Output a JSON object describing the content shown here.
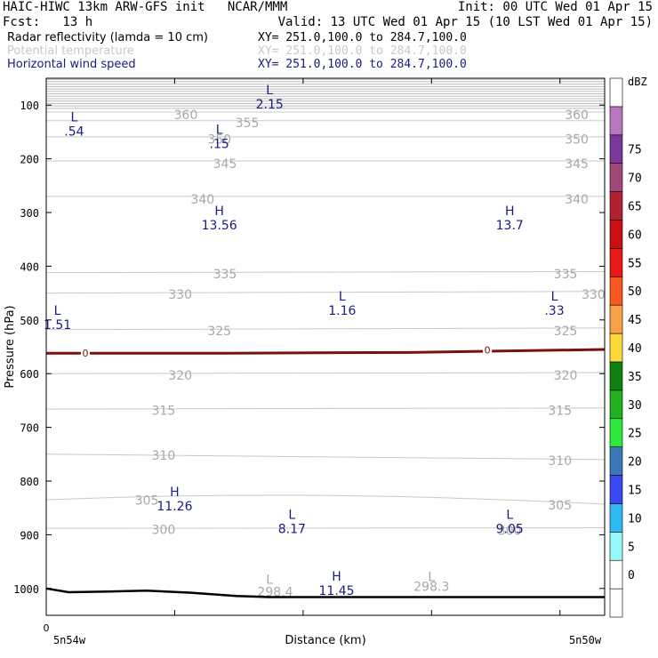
{
  "header": {
    "line1_left": "HAIC-HIWC 13km ARW-GFS init   NCAR/MMM",
    "line1_right": "Init: 00 UTC Wed 01 Apr 15",
    "line2_left": "Fcst:   13 h",
    "line2_right": "Valid: 13 UTC Wed 01 Apr 15 (10 LST Wed 01 Apr 15)",
    "fields": [
      {
        "name": "Radar reflectivity (lamda = 10 cm)",
        "xy": "XY= 251.0,100.0 to 284.7,100.0",
        "color": "#000000"
      },
      {
        "name": "Potential temperature",
        "xy": "XY= 251.0,100.0 to 284.7,100.0",
        "color": "#c8c8c8"
      },
      {
        "name": "Horizontal wind speed",
        "xy": "XY= 251.0,100.0 to 284.7,100.0",
        "color": "#1a1a80"
      }
    ]
  },
  "colors": {
    "theta": "#a8a8a8",
    "wind_label": "#1a1a80",
    "freezing": "#7a1010",
    "terrain": "#000000"
  },
  "chart_data": {
    "type": "cross-section",
    "ylabel": "Pressure (hPa)",
    "xlabel": "Distance (km)",
    "x_start_label": "5n54w",
    "x_end_label": "5n50w",
    "x_zero_label": "0",
    "y_range": [
      50,
      1050
    ],
    "y_ticks": [
      100,
      200,
      300,
      400,
      500,
      600,
      700,
      800,
      900,
      1000
    ],
    "theta_contours": [
      {
        "value": 360,
        "p_left": 113,
        "p_right": 113
      },
      {
        "value": 355,
        "p_left": 129,
        "p_right": 129
      },
      {
        "value": 350,
        "p_left": 159,
        "p_right": 159
      },
      {
        "value": 345,
        "p_left": 204,
        "p_right": 204
      },
      {
        "value": 340,
        "p_left": 270,
        "p_right": 270
      },
      {
        "value": 335,
        "p_left": 412,
        "p_right": 410
      },
      {
        "value": 330,
        "p_left": 450,
        "p_right": 447
      },
      {
        "value": 325,
        "p_left": 518,
        "p_right": 515
      },
      {
        "value": 320,
        "p_left": 600,
        "p_right": 598
      },
      {
        "value": 315,
        "p_left": 666,
        "p_right": 664
      },
      {
        "value": 310,
        "p_left": 750,
        "p_right": 760
      },
      {
        "value": 305,
        "p_left": 835,
        "p_right": 843
      },
      {
        "value": 300,
        "p_left": 888,
        "p_right": 887
      }
    ],
    "theta_labels": [
      {
        "text": "360",
        "x": 0.25,
        "p": 118
      },
      {
        "text": "360",
        "x": 0.95,
        "p": 118
      },
      {
        "text": "355",
        "x": 0.36,
        "p": 133
      },
      {
        "text": "350",
        "x": 0.31,
        "p": 163
      },
      {
        "text": "350",
        "x": 0.95,
        "p": 163
      },
      {
        "text": "345",
        "x": 0.32,
        "p": 209
      },
      {
        "text": "345",
        "x": 0.95,
        "p": 209
      },
      {
        "text": "340",
        "x": 0.28,
        "p": 275
      },
      {
        "text": "340",
        "x": 0.95,
        "p": 275
      },
      {
        "text": "335",
        "x": 0.32,
        "p": 414
      },
      {
        "text": "335",
        "x": 0.93,
        "p": 414
      },
      {
        "text": "330",
        "x": 0.24,
        "p": 452
      },
      {
        "text": "330",
        "x": 0.98,
        "p": 452
      },
      {
        "text": "325",
        "x": 0.31,
        "p": 520
      },
      {
        "text": "325",
        "x": 0.93,
        "p": 520
      },
      {
        "text": "320",
        "x": 0.24,
        "p": 603
      },
      {
        "text": "320",
        "x": 0.93,
        "p": 603
      },
      {
        "text": "315",
        "x": 0.21,
        "p": 668
      },
      {
        "text": "315",
        "x": 0.92,
        "p": 668
      },
      {
        "text": "310",
        "x": 0.21,
        "p": 752
      },
      {
        "text": "310",
        "x": 0.92,
        "p": 762
      },
      {
        "text": "305",
        "x": 0.18,
        "p": 836
      },
      {
        "text": "305",
        "x": 0.92,
        "p": 845
      },
      {
        "text": "300",
        "x": 0.21,
        "p": 890
      },
      {
        "text": "300",
        "x": 0.83,
        "p": 892
      },
      {
        "text": "298.4",
        "x": 0.41,
        "p": 1006
      },
      {
        "text": "298.3",
        "x": 0.69,
        "p": 996
      }
    ],
    "theta_minima": [
      {
        "text": "L",
        "x": 0.4,
        "p": 983
      },
      {
        "text": "L",
        "x": 0.69,
        "p": 978
      }
    ],
    "wind_extrema": [
      {
        "type": "L",
        "value": "2.15",
        "x": 0.4,
        "p": 90
      },
      {
        "type": "L",
        "value": ".54",
        "x": 0.05,
        "p": 140
      },
      {
        "type": "L",
        "value": ".15",
        "x": 0.31,
        "p": 163
      },
      {
        "type": "H",
        "value": "13.56",
        "x": 0.31,
        "p": 315
      },
      {
        "type": "H",
        "value": "13.7",
        "x": 0.83,
        "p": 315
      },
      {
        "type": "L",
        "value": "1.16",
        "x": 0.53,
        "p": 474
      },
      {
        "type": "L",
        "value": ".33",
        "x": 0.91,
        "p": 474
      },
      {
        "type": "L",
        "value": "1.51",
        "x": 0.02,
        "p": 500
      },
      {
        "type": "H",
        "value": "11.26",
        "x": 0.23,
        "p": 838
      },
      {
        "type": "L",
        "value": "8.17",
        "x": 0.44,
        "p": 880
      },
      {
        "type": "L",
        "value": "9.05",
        "x": 0.83,
        "p": 880
      },
      {
        "type": "H",
        "value": "11.45",
        "x": 0.52,
        "p": 995
      }
    ],
    "freezing_level": {
      "label": "0",
      "p_left": 562,
      "p_right": 555
    },
    "terrain_surface": [
      {
        "x": 0.0,
        "p": 1000
      },
      {
        "x": 0.04,
        "p": 1007
      },
      {
        "x": 0.1,
        "p": 1006
      },
      {
        "x": 0.18,
        "p": 1004
      },
      {
        "x": 0.26,
        "p": 1008
      },
      {
        "x": 0.34,
        "p": 1014
      },
      {
        "x": 0.4,
        "p": 1016
      },
      {
        "x": 0.7,
        "p": 1016
      },
      {
        "x": 1.0,
        "p": 1016
      }
    ],
    "colorbar": {
      "unit": "dBZ",
      "levels": [
        -5,
        0,
        5,
        10,
        15,
        20,
        25,
        30,
        35,
        40,
        45,
        50,
        55,
        60,
        65,
        70,
        75,
        80
      ],
      "labels": [
        "0",
        "5",
        "10",
        "15",
        "20",
        "25",
        "30",
        "35",
        "40",
        "45",
        "50",
        "55",
        "60",
        "65",
        "70",
        "75"
      ],
      "colors": [
        "#ffffff",
        "#ffffff",
        "#96f8f8",
        "#30b8f0",
        "#3a48f0",
        "#3a78b8",
        "#2ee83a",
        "#20b020",
        "#108010",
        "#fcd838",
        "#f6a048",
        "#f85820",
        "#e81818",
        "#c81010",
        "#b02030",
        "#a04878",
        "#7a3898",
        "#b878c0",
        "#ffffff"
      ]
    }
  }
}
